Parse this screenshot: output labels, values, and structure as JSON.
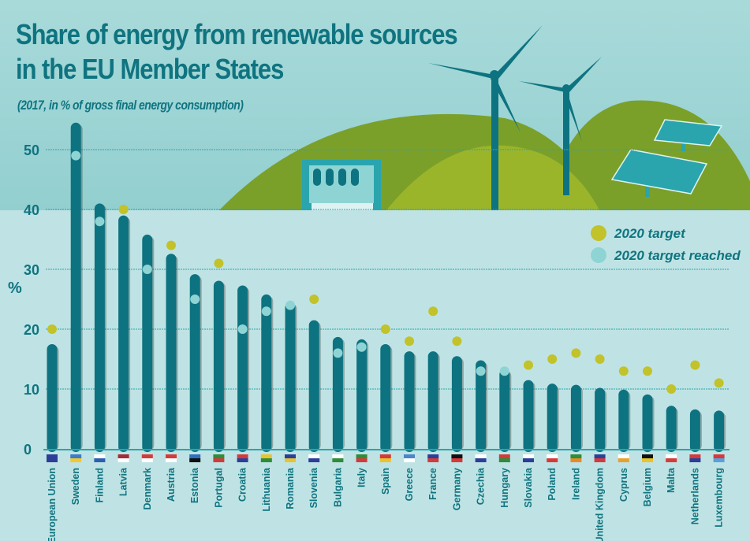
{
  "header": {
    "title_line1": "Share of energy from renewable sources",
    "title_line2": "in the EU Member States",
    "subtitle": "(2017, in % of gross final energy consumption)"
  },
  "colors": {
    "bar": "#0d7380",
    "target": "#c2c22a",
    "target_reached": "#8fd4d5",
    "text": "#0f7480",
    "hill_dark": "#7ba02a",
    "hill_light": "#9bb52a"
  },
  "legend": {
    "items": [
      {
        "label": "2020 target",
        "kind": "target"
      },
      {
        "label": "2020 target reached",
        "kind": "target_reached"
      }
    ]
  },
  "chart_data": {
    "type": "bar",
    "title": "Share of energy from renewable sources in the EU Member States",
    "subtitle": "(2017, in % of gross final energy consumption)",
    "xlabel": "",
    "ylabel": "%",
    "ylim": [
      0,
      55
    ],
    "yticks": [
      0,
      10,
      20,
      30,
      40,
      50
    ],
    "grid": true,
    "legend_position": "top-right",
    "categories": [
      "European Union",
      "Sweden",
      "Finland",
      "Latvia",
      "Denmark",
      "Austria",
      "Estonia",
      "Portugal",
      "Croatia",
      "Lithuania",
      "Romania",
      "Slovenia",
      "Bulgaria",
      "Italy",
      "Spain",
      "Greece",
      "France",
      "Germany",
      "Czechia",
      "Hungary",
      "Slovakia",
      "Poland",
      "Ireland",
      "United Kingdom",
      "Cyprus",
      "Belgium",
      "Malta",
      "Netherlands",
      "Luxembourg"
    ],
    "flags": [
      "eu",
      "se",
      "fi",
      "lv",
      "dk",
      "at",
      "ee",
      "pt",
      "hr",
      "lt",
      "ro",
      "si",
      "bg",
      "it",
      "es",
      "gr",
      "fr",
      "de",
      "cz",
      "hu",
      "sk",
      "pl",
      "ie",
      "uk",
      "cy",
      "be",
      "mt",
      "nl",
      "lu"
    ],
    "series": [
      {
        "name": "Share 2017",
        "values": [
          17.5,
          54.5,
          41.0,
          39.0,
          35.8,
          32.6,
          29.2,
          28.1,
          27.3,
          25.8,
          24.5,
          21.5,
          18.7,
          18.3,
          17.5,
          16.3,
          16.3,
          15.5,
          14.8,
          13.3,
          11.5,
          10.9,
          10.7,
          10.2,
          9.9,
          9.1,
          7.2,
          6.6,
          6.4
        ]
      },
      {
        "name": "2020 target",
        "values": [
          20,
          49,
          38,
          40,
          30,
          34,
          25,
          31,
          20,
          23,
          24,
          25,
          16,
          17,
          20,
          18,
          23,
          18,
          13,
          13,
          14,
          15,
          16,
          15,
          13,
          13,
          10,
          14,
          11
        ]
      }
    ],
    "target_reached": [
      false,
      true,
      true,
      false,
      true,
      false,
      true,
      false,
      true,
      true,
      true,
      false,
      true,
      true,
      false,
      false,
      false,
      false,
      true,
      true,
      false,
      false,
      false,
      false,
      false,
      false,
      false,
      false,
      false
    ]
  }
}
